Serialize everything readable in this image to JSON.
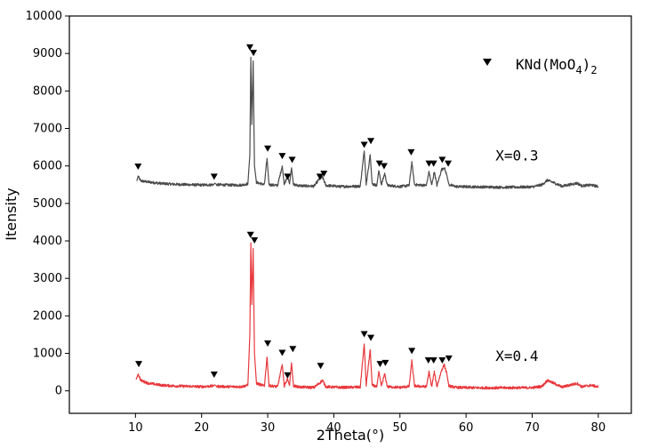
{
  "chart_data": {
    "type": "line",
    "title": "",
    "xlabel": "2Theta(°)",
    "ylabel": "Itensity",
    "xlim": [
      0,
      85
    ],
    "ylim": [
      -600,
      10000
    ],
    "xticks": [
      10,
      20,
      30,
      40,
      50,
      60,
      70,
      80
    ],
    "yticks": [
      0,
      1000,
      2000,
      3000,
      4000,
      5000,
      6000,
      7000,
      8000,
      9000,
      10000
    ],
    "legend": {
      "marker": "inverted-triangle",
      "text_main": "KNd(MoO",
      "text_sub4": "4",
      "text_close": ")",
      "text_sub2": "2",
      "placement": "top-right"
    },
    "series": [
      {
        "name": "X=0.3",
        "color": "#4a4a4a",
        "baseline": 5450,
        "points": [
          [
            10.2,
            5600
          ],
          [
            10.4,
            5720
          ],
          [
            10.8,
            5600
          ],
          [
            12,
            5570
          ],
          [
            14,
            5530
          ],
          [
            16,
            5510
          ],
          [
            18,
            5500
          ],
          [
            20,
            5490
          ],
          [
            21.8,
            5500
          ],
          [
            22,
            5540
          ],
          [
            22.3,
            5500
          ],
          [
            24,
            5490
          ],
          [
            26,
            5490
          ],
          [
            27.0,
            5520
          ],
          [
            27.3,
            6300
          ],
          [
            27.45,
            8900
          ],
          [
            27.6,
            7100
          ],
          [
            27.8,
            8800
          ],
          [
            28.0,
            6000
          ],
          [
            28.3,
            5560
          ],
          [
            29.5,
            5500
          ],
          [
            29.9,
            6200
          ],
          [
            30.2,
            5500
          ],
          [
            31.5,
            5480
          ],
          [
            32.2,
            6000
          ],
          [
            32.5,
            5500
          ],
          [
            33.0,
            5750
          ],
          [
            33.3,
            5520
          ],
          [
            33.6,
            5950
          ],
          [
            33.9,
            5500
          ],
          [
            35,
            5470
          ],
          [
            37,
            5460
          ],
          [
            37.8,
            5650
          ],
          [
            38.3,
            5700
          ],
          [
            38.8,
            5480
          ],
          [
            41,
            5450
          ],
          [
            44,
            5460
          ],
          [
            44.6,
            6400
          ],
          [
            44.9,
            5520
          ],
          [
            45.5,
            6300
          ],
          [
            45.8,
            5520
          ],
          [
            46.5,
            5480
          ],
          [
            46.8,
            5880
          ],
          [
            47.2,
            5500
          ],
          [
            47.7,
            5800
          ],
          [
            48.1,
            5480
          ],
          [
            50,
            5450
          ],
          [
            51.4,
            5480
          ],
          [
            51.8,
            6100
          ],
          [
            52.2,
            5500
          ],
          [
            54,
            5480
          ],
          [
            54.4,
            5850
          ],
          [
            54.8,
            5480
          ],
          [
            55.2,
            5850
          ],
          [
            55.6,
            5480
          ],
          [
            56.3,
            5900
          ],
          [
            56.7,
            5960
          ],
          [
            57.1,
            5750
          ],
          [
            57.4,
            5500
          ],
          [
            58.5,
            5450
          ],
          [
            62,
            5440
          ],
          [
            66,
            5430
          ],
          [
            70,
            5440
          ],
          [
            71.5,
            5500
          ],
          [
            72.3,
            5620
          ],
          [
            73.3,
            5550
          ],
          [
            74.5,
            5460
          ],
          [
            76.8,
            5540
          ],
          [
            77.5,
            5470
          ],
          [
            79,
            5490
          ],
          [
            80,
            5450
          ]
        ]
      },
      {
        "name": "X=0.4",
        "color": "#e8383d",
        "baseline": 100,
        "points": [
          [
            10.1,
            300
          ],
          [
            10.4,
            450
          ],
          [
            10.8,
            280
          ],
          [
            12,
            200
          ],
          [
            14,
            150
          ],
          [
            16,
            130
          ],
          [
            18,
            120
          ],
          [
            20,
            110
          ],
          [
            21.8,
            130
          ],
          [
            22,
            160
          ],
          [
            22.3,
            120
          ],
          [
            24,
            110
          ],
          [
            26,
            110
          ],
          [
            27.0,
            150
          ],
          [
            27.3,
            1500
          ],
          [
            27.45,
            3950
          ],
          [
            27.6,
            2300
          ],
          [
            27.8,
            3800
          ],
          [
            28.0,
            1000
          ],
          [
            28.3,
            200
          ],
          [
            29.5,
            130
          ],
          [
            29.9,
            900
          ],
          [
            30.2,
            140
          ],
          [
            31.5,
            110
          ],
          [
            32.2,
            700
          ],
          [
            32.5,
            130
          ],
          [
            33.0,
            320
          ],
          [
            33.3,
            140
          ],
          [
            33.6,
            750
          ],
          [
            33.9,
            130
          ],
          [
            35,
            100
          ],
          [
            37,
            90
          ],
          [
            37.8,
            200
          ],
          [
            38.3,
            280
          ],
          [
            38.8,
            110
          ],
          [
            41,
            90
          ],
          [
            44,
            100
          ],
          [
            44.6,
            1250
          ],
          [
            44.9,
            150
          ],
          [
            45.5,
            1100
          ],
          [
            45.8,
            150
          ],
          [
            46.5,
            110
          ],
          [
            46.8,
            500
          ],
          [
            47.2,
            130
          ],
          [
            47.7,
            450
          ],
          [
            48.1,
            110
          ],
          [
            50,
            90
          ],
          [
            51.4,
            120
          ],
          [
            51.8,
            800
          ],
          [
            52.2,
            130
          ],
          [
            54,
            110
          ],
          [
            54.4,
            500
          ],
          [
            54.8,
            110
          ],
          [
            55.2,
            500
          ],
          [
            55.6,
            110
          ],
          [
            56.3,
            550
          ],
          [
            56.7,
            700
          ],
          [
            57.1,
            450
          ],
          [
            57.4,
            130
          ],
          [
            58.5,
            90
          ],
          [
            62,
            80
          ],
          [
            66,
            80
          ],
          [
            70,
            85
          ],
          [
            71.5,
            120
          ],
          [
            72.3,
            280
          ],
          [
            73.3,
            200
          ],
          [
            74.5,
            100
          ],
          [
            76.8,
            200
          ],
          [
            77.5,
            110
          ],
          [
            79,
            150
          ],
          [
            80,
            100
          ]
        ]
      }
    ],
    "markers_x03": [
      [
        10.4,
        5970
      ],
      [
        21.9,
        5700
      ],
      [
        27.3,
        9150
      ],
      [
        27.85,
        9000
      ],
      [
        30,
        6450
      ],
      [
        32.2,
        6250
      ],
      [
        33.0,
        5700
      ],
      [
        33.7,
        6150
      ],
      [
        37.9,
        5700
      ],
      [
        38.5,
        5780
      ],
      [
        44.6,
        6550
      ],
      [
        45.6,
        6650
      ],
      [
        46.9,
        6050
      ],
      [
        47.6,
        5980
      ],
      [
        51.7,
        6350
      ],
      [
        54.4,
        6050
      ],
      [
        55.1,
        6050
      ],
      [
        56.4,
        6150
      ],
      [
        57.3,
        6050
      ]
    ],
    "markers_x04": [
      [
        10.5,
        700
      ],
      [
        21.9,
        420
      ],
      [
        27.4,
        4150
      ],
      [
        28.0,
        4000
      ],
      [
        30,
        1250
      ],
      [
        32.2,
        1000
      ],
      [
        33.0,
        400
      ],
      [
        33.8,
        1100
      ],
      [
        38.0,
        650
      ],
      [
        44.6,
        1500
      ],
      [
        45.6,
        1400
      ],
      [
        47.0,
        700
      ],
      [
        47.8,
        730
      ],
      [
        51.8,
        1050
      ],
      [
        54.3,
        800
      ],
      [
        55.1,
        800
      ],
      [
        56.4,
        800
      ],
      [
        57.4,
        850
      ]
    ],
    "annotations": [
      {
        "text": "X=0.3",
        "x": 65,
        "y": 6150
      },
      {
        "text": "X=0.4",
        "x": 65,
        "y": 800
      }
    ]
  }
}
